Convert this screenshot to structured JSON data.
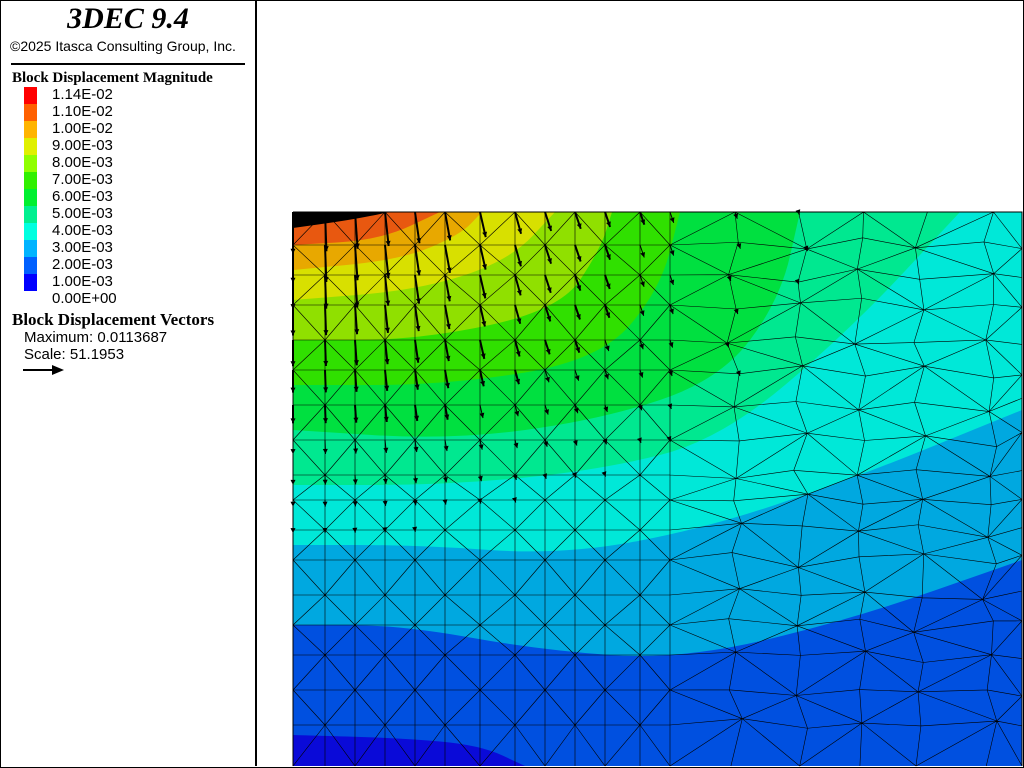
{
  "app_title": "3DEC 9.4",
  "copyright": "©2025 Itasca Consulting Group, Inc.",
  "contour_legend": {
    "title": "Block  Displacement Magnitude",
    "levels": [
      {
        "label": "1.14E-02",
        "color": "#ff0000"
      },
      {
        "label": "1.10E-02",
        "color": "#ff6000"
      },
      {
        "label": "1.00E-02",
        "color": "#ffb400"
      },
      {
        "label": "9.00E-03",
        "color": "#e0f000"
      },
      {
        "label": "8.00E-03",
        "color": "#90ff00"
      },
      {
        "label": "7.00E-03",
        "color": "#30f000"
      },
      {
        "label": "6.00E-03",
        "color": "#00f030"
      },
      {
        "label": "5.00E-03",
        "color": "#00f090"
      },
      {
        "label": "4.00E-03",
        "color": "#00ffe0"
      },
      {
        "label": "3.00E-03",
        "color": "#00b4ff"
      },
      {
        "label": "2.00E-03",
        "color": "#0060ff"
      },
      {
        "label": "1.00E-03",
        "color": "#0000ff"
      },
      {
        "label": "0.00E+00",
        "color": "#0000ff"
      }
    ]
  },
  "vector_legend": {
    "title": "Block Displacement Vectors",
    "maximum": "Maximum: 0.0113687",
    "scale": "Scale: 51.1953",
    "arrow_icon": "arrow-right-icon"
  },
  "plot_band_colors": [
    "#0a0ad8",
    "#0050e0",
    "#00a8e0",
    "#00e8d8",
    "#00e890",
    "#00e040",
    "#30e000",
    "#90e000",
    "#d8e000",
    "#e8a800",
    "#e85810"
  ]
}
